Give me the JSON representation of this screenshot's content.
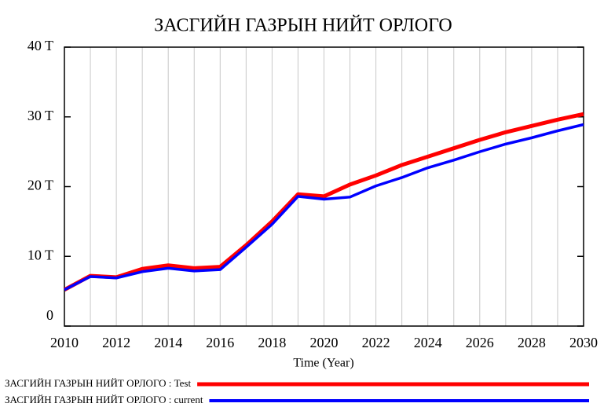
{
  "chart_data": {
    "type": "line",
    "title": "ЗАСГИЙН ГАЗРЫН НИЙТ ОРЛОГО",
    "x_label": "Time (Year)",
    "x": [
      2010,
      2011,
      2012,
      2013,
      2014,
      2015,
      2016,
      2017,
      2018,
      2019,
      2020,
      2021,
      2022,
      2023,
      2024,
      2025,
      2026,
      2027,
      2028,
      2029,
      2030
    ],
    "series": [
      {
        "name": "ЗАСГИЙН ГАЗРЫН НИЙТ ОРЛОГО : Test",
        "color": "#ff0000",
        "values": [
          5.2,
          7.2,
          7.0,
          8.2,
          8.7,
          8.3,
          8.5,
          11.6,
          15.0,
          18.9,
          18.6,
          20.3,
          21.6,
          23.1,
          24.3,
          25.5,
          26.7,
          27.8,
          28.7,
          29.6,
          30.4
        ]
      },
      {
        "name": "ЗАСГИЙН ГАЗРЫН НИЙТ ОРЛОГО : current",
        "color": "#0000ff",
        "values": [
          5.2,
          7.1,
          6.9,
          7.8,
          8.3,
          7.9,
          8.1,
          11.3,
          14.6,
          18.6,
          18.2,
          18.5,
          20.1,
          21.3,
          22.7,
          23.8,
          25.0,
          26.1,
          27.0,
          28.0,
          28.9
        ]
      }
    ],
    "xlim": [
      2010,
      2030
    ],
    "xticks": [
      2010,
      2012,
      2014,
      2016,
      2018,
      2020,
      2022,
      2024,
      2026,
      2028,
      2030
    ],
    "x_minor_ticks": [
      2011,
      2013,
      2015,
      2017,
      2019,
      2021,
      2023,
      2025,
      2027,
      2029
    ],
    "ylim": [
      0,
      40
    ],
    "yticks": [
      0,
      {
        "value": 10,
        "label": "10 T"
      },
      {
        "value": 20,
        "label": "20 T"
      },
      {
        "value": 30,
        "label": "30 T"
      },
      {
        "value": 40,
        "label": "40 T"
      }
    ],
    "grid": true,
    "legend": "bottom"
  }
}
